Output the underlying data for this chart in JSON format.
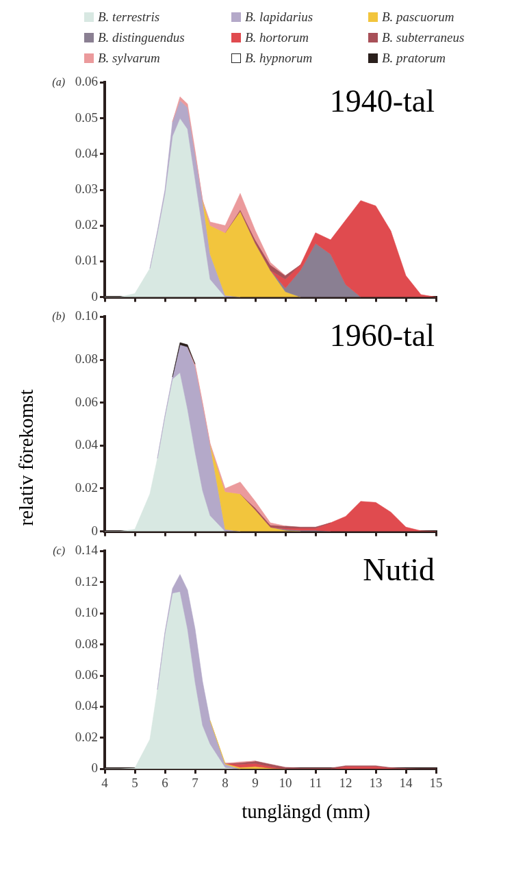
{
  "chart_data": [
    {
      "type": "area",
      "stacked": true,
      "title": "1940-tal",
      "annotations": [
        "(a)"
      ],
      "legend": "top",
      "tick_labels": "y",
      "x": [
        4,
        4.5,
        5,
        5.5,
        5.75,
        6,
        6.25,
        6.5,
        6.75,
        7,
        7.25,
        7.5,
        8,
        8.5,
        9,
        9.5,
        10,
        10.5,
        11,
        11.5,
        12,
        12.5,
        13,
        13.5,
        14,
        14.5,
        15
      ],
      "xlim": [
        4,
        15
      ],
      "xticks": [
        4,
        5,
        6,
        7,
        8,
        9,
        10,
        11,
        12,
        13,
        14,
        15
      ],
      "ylim": [
        0,
        0.06
      ],
      "yticks": [
        0,
        0.01,
        0.02,
        0.03,
        0.04,
        0.05,
        0.06
      ],
      "series": [
        {
          "name": "B. terrestris",
          "color": "#d8e8e2",
          "values": [
            0,
            0,
            0.001,
            0.008,
            0.018,
            0.029,
            0.045,
            0.05,
            0.047,
            0.033,
            0.019,
            0.005,
            0,
            null,
            null,
            null,
            null,
            null,
            null,
            null,
            null,
            null,
            null,
            null,
            null,
            null,
            null
          ]
        },
        {
          "name": "B. lapidarius",
          "color": "#b4a9c9",
          "values": [
            null,
            null,
            null,
            0,
            0.0005,
            0.001,
            0.004,
            0.005,
            0.006,
            0.007,
            0.008,
            0.007,
            0.0005,
            0,
            null,
            null,
            null,
            null,
            null,
            null,
            null,
            null,
            null,
            null,
            null,
            null,
            null
          ]
        },
        {
          "name": "B. pascuorum",
          "color": "#f2c53d",
          "values": [
            null,
            null,
            null,
            null,
            null,
            null,
            null,
            null,
            null,
            null,
            0,
            0.008,
            0.0175,
            0.024,
            0.015,
            0.0075,
            0.0015,
            0,
            null,
            null,
            null,
            null,
            null,
            null,
            null,
            null,
            null
          ]
        },
        {
          "name": "B. distinguendus",
          "color": "#8a7f92",
          "values": [
            null,
            null,
            null,
            null,
            null,
            null,
            null,
            null,
            null,
            null,
            null,
            null,
            null,
            null,
            null,
            0,
            0.001,
            0.0075,
            0.015,
            0.012,
            0.0035,
            0,
            null,
            null,
            null,
            null,
            null
          ]
        },
        {
          "name": "B. hortorum",
          "color": "#e04b4f",
          "values": [
            null,
            null,
            null,
            null,
            null,
            null,
            null,
            null,
            null,
            null,
            null,
            null,
            null,
            null,
            null,
            0,
            0.0025,
            0.0015,
            0.003,
            0.004,
            0.018,
            0.027,
            0.0255,
            0.0185,
            0.006,
            0.0007,
            0
          ]
        },
        {
          "name": "B. subterraneus",
          "color": "#a85058",
          "values": [
            null,
            null,
            null,
            null,
            null,
            null,
            null,
            null,
            null,
            null,
            null,
            null,
            0,
            0.0005,
            0.001,
            0.0015,
            0.001,
            0,
            null,
            null,
            null,
            null,
            null,
            null,
            null,
            null,
            null
          ]
        },
        {
          "name": "B. sylvarum",
          "color": "#eb9a9c",
          "values": [
            null,
            null,
            null,
            null,
            null,
            null,
            0,
            0.001,
            0.001,
            0.001,
            0,
            0.001,
            0.002,
            0.0045,
            0.0026,
            0.0007,
            0,
            null,
            null,
            null,
            null,
            null,
            null,
            null,
            null,
            null,
            null
          ]
        },
        {
          "name": "B. hypnorum",
          "color": "#ffffff",
          "values": [
            null,
            null,
            null,
            null,
            null,
            null,
            null,
            null,
            null,
            null,
            null,
            null,
            null,
            null,
            null,
            null,
            null,
            null,
            null,
            null,
            null,
            null,
            null,
            null,
            null,
            null,
            null
          ]
        },
        {
          "name": "B. pratorum",
          "color": "#2a1f1c",
          "values": [
            null,
            null,
            null,
            null,
            null,
            null,
            null,
            null,
            null,
            null,
            null,
            null,
            null,
            null,
            null,
            null,
            null,
            null,
            null,
            null,
            null,
            null,
            null,
            null,
            null,
            null,
            null
          ]
        }
      ]
    },
    {
      "type": "area",
      "stacked": true,
      "title": "1960-tal",
      "annotations": [
        "(b)"
      ],
      "ylabel": "relativ förekomst",
      "tick_labels": "y",
      "x": [
        4,
        4.5,
        5,
        5.5,
        5.75,
        6,
        6.25,
        6.5,
        6.75,
        7,
        7.25,
        7.5,
        8,
        8.5,
        9,
        9.5,
        10,
        10.5,
        11,
        11.5,
        12,
        12.5,
        13,
        13.5,
        14,
        14.5,
        15
      ],
      "xlim": [
        4,
        15
      ],
      "xticks": [
        4,
        5,
        6,
        7,
        8,
        9,
        10,
        11,
        12,
        13,
        14,
        15
      ],
      "ylim": [
        0,
        0.1
      ],
      "yticks": [
        0,
        0.02,
        0.04,
        0.06,
        0.08,
        {
          "value": 0.1,
          "label": "0.10"
        }
      ],
      "series": [
        {
          "color": "#d8e8e2",
          "values": [
            0,
            0,
            0.001,
            0.0175,
            0.034,
            0.0535,
            0.071,
            0.074,
            0.057,
            0.037,
            0.019,
            0.0074,
            0,
            null,
            null,
            null,
            null,
            null,
            null,
            null,
            null,
            null,
            null,
            null,
            null,
            null,
            null
          ]
        },
        {
          "color": "#b4a9c9",
          "values": [
            null,
            null,
            null,
            null,
            0,
            0.0005,
            0.001,
            0.013,
            0.029,
            0.04,
            0.04,
            0.033,
            0.001,
            0,
            null,
            null,
            null,
            null,
            null,
            null,
            null,
            null,
            null,
            null,
            null,
            null,
            null
          ]
        },
        {
          "color": "#f2c53d",
          "values": [
            null,
            null,
            null,
            null,
            null,
            null,
            null,
            null,
            null,
            null,
            null,
            0,
            0.0175,
            0.0175,
            0.01,
            0.002,
            0.0005,
            0,
            null,
            null,
            null,
            null,
            null,
            null,
            null,
            null,
            null
          ]
        },
        {
          "color": "#8a7f92",
          "values": [
            null,
            null,
            null,
            null,
            null,
            null,
            null,
            null,
            null,
            null,
            null,
            null,
            null,
            null,
            null,
            0,
            0.0005,
            0.0005,
            0.0005,
            0,
            null,
            null,
            null,
            null,
            null,
            null,
            null
          ]
        },
        {
          "color": "#e04b4f",
          "values": [
            null,
            null,
            null,
            null,
            null,
            null,
            null,
            null,
            null,
            null,
            null,
            null,
            null,
            null,
            null,
            0,
            0.0005,
            0.001,
            0.001,
            0.004,
            0.007,
            0.014,
            0.0135,
            0.009,
            0.002,
            0.0003,
            0
          ]
        },
        {
          "color": "#a85058",
          "values": [
            null,
            null,
            null,
            null,
            null,
            null,
            null,
            null,
            null,
            null,
            null,
            null,
            null,
            0,
            0.001,
            0.001,
            0.001,
            0.0005,
            0.0005,
            0,
            null,
            null,
            null,
            null,
            null,
            null,
            null
          ]
        },
        {
          "color": "#eb9a9c",
          "values": [
            null,
            null,
            null,
            null,
            null,
            null,
            null,
            null,
            0,
            0.001,
            0.001,
            0.0006,
            0.0015,
            0.0055,
            0.003,
            0.001,
            0,
            null,
            null,
            null,
            null,
            null,
            null,
            null,
            null,
            null,
            null
          ]
        },
        {
          "color": "#2a1f1c",
          "values": [
            null,
            null,
            null,
            null,
            null,
            null,
            0,
            0.001,
            0.001,
            0,
            null,
            null,
            null,
            null,
            null,
            null,
            null,
            null,
            null,
            null,
            null,
            null,
            null,
            null,
            null,
            null,
            null
          ]
        }
      ]
    },
    {
      "type": "area",
      "stacked": true,
      "title": "Nutid",
      "annotations": [
        "(c)"
      ],
      "xlabel": "tunglängd (mm)",
      "x": [
        4,
        4.5,
        5,
        5.5,
        5.75,
        6,
        6.25,
        6.5,
        6.75,
        7,
        7.25,
        7.5,
        8,
        8.5,
        9,
        9.5,
        10,
        10.5,
        11,
        11.5,
        12,
        12.5,
        13,
        13.5,
        14,
        14.5,
        15
      ],
      "xlim": [
        4,
        15
      ],
      "xticks": [
        4,
        5,
        6,
        7,
        8,
        9,
        10,
        11,
        12,
        13,
        14,
        15
      ],
      "ylim": [
        0,
        0.14
      ],
      "yticks": [
        0,
        0.02,
        0.04,
        0.06,
        0.08,
        {
          "value": 0.1,
          "label": "0.10"
        },
        0.12,
        0.14
      ],
      "series": [
        {
          "color": "#d8e8e2",
          "values": [
            0,
            0,
            0.0005,
            0.019,
            0.051,
            0.087,
            0.113,
            0.114,
            0.09,
            0.056,
            0.028,
            0.016,
            0.001,
            0,
            null,
            null,
            null,
            null,
            null,
            null,
            null,
            null,
            null,
            null,
            null,
            null,
            null
          ]
        },
        {
          "color": "#b4a9c9",
          "values": [
            null,
            null,
            null,
            null,
            0,
            0.001,
            0.003,
            0.011,
            0.025,
            0.034,
            0.028,
            0.015,
            0.002,
            0,
            null,
            null,
            null,
            null,
            null,
            null,
            null,
            null,
            null,
            null,
            null,
            null,
            null
          ]
        },
        {
          "color": "#f2c53d",
          "values": [
            null,
            null,
            null,
            null,
            null,
            null,
            null,
            null,
            null,
            null,
            null,
            0,
            0.0005,
            0.001,
            0.0015,
            0.0005,
            0,
            null,
            null,
            null,
            null,
            null,
            null,
            null,
            null,
            null,
            null
          ]
        },
        {
          "color": "#e04b4f",
          "values": [
            null,
            null,
            null,
            null,
            null,
            null,
            null,
            null,
            null,
            null,
            null,
            null,
            0,
            0.002,
            0.002,
            0.001,
            0,
            null,
            null,
            0,
            0.0015,
            0.0015,
            0.0015,
            0.0005,
            0,
            null,
            null
          ]
        },
        {
          "color": "#a85058",
          "values": [
            null,
            null,
            null,
            null,
            null,
            null,
            null,
            null,
            null,
            null,
            null,
            null,
            0,
            0.001,
            0.0015,
            0.0015,
            0.001,
            0.0005,
            0.0005,
            0.0005,
            0.0005,
            0.0005,
            0.0005,
            0.0003,
            0.0003,
            0,
            0
          ]
        },
        {
          "color": "#eb9a9c",
          "values": [
            null,
            null,
            null,
            null,
            null,
            null,
            null,
            null,
            null,
            null,
            null,
            null,
            0,
            0.0005,
            0,
            null,
            null,
            null,
            null,
            null,
            null,
            null,
            null,
            null,
            null,
            null,
            null
          ]
        }
      ]
    }
  ]
}
